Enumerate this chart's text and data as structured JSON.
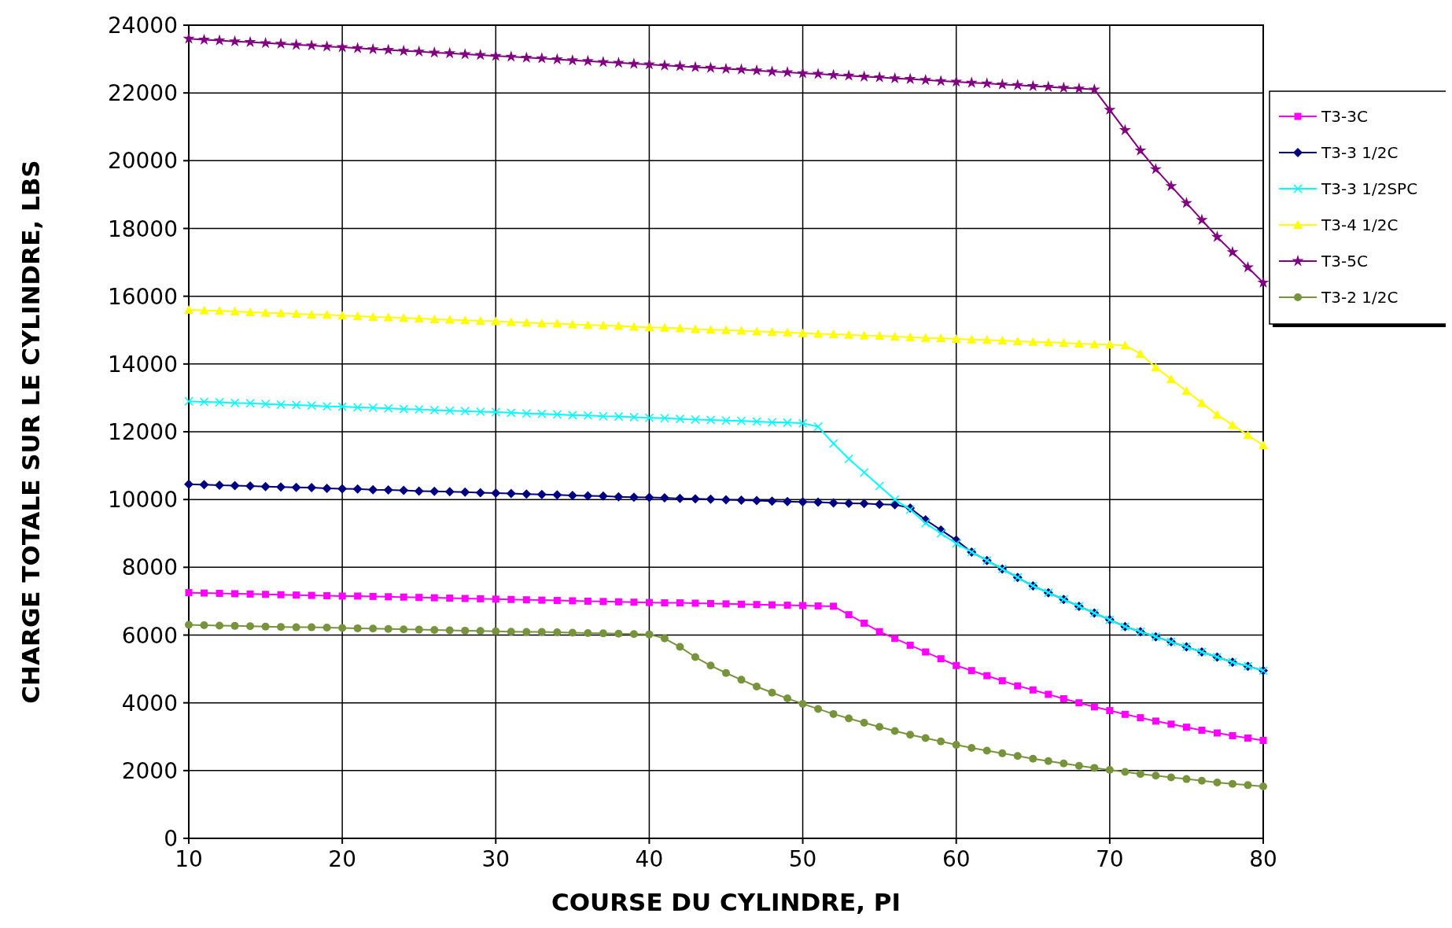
{
  "chart_data": {
    "type": "line",
    "xlabel": "COURSE DU CYLINDRE, PI",
    "ylabel": "CHARGE TOTALE SUR LE CYLINDRE, LBS",
    "x": [
      10,
      11,
      12,
      13,
      14,
      15,
      16,
      17,
      18,
      19,
      20,
      21,
      22,
      23,
      24,
      25,
      26,
      27,
      28,
      29,
      30,
      31,
      32,
      33,
      34,
      35,
      36,
      37,
      38,
      39,
      40,
      41,
      42,
      43,
      44,
      45,
      46,
      47,
      48,
      49,
      50,
      51,
      52,
      53,
      54,
      55,
      56,
      57,
      58,
      59,
      60,
      61,
      62,
      63,
      64,
      65,
      66,
      67,
      68,
      69,
      70,
      71,
      72,
      73,
      74,
      75,
      76,
      77,
      78,
      79,
      80
    ],
    "xlim": [
      10,
      80
    ],
    "xticks": [
      10,
      20,
      30,
      40,
      50,
      60,
      70,
      80
    ],
    "ylim": [
      0,
      24000
    ],
    "yticks": [
      0,
      2000,
      4000,
      6000,
      8000,
      10000,
      12000,
      14000,
      16000,
      18000,
      20000,
      22000,
      24000
    ],
    "grid": true,
    "legend": "right",
    "line_style": "solid",
    "series": [
      {
        "name": "T3-3C",
        "color": "#ff00ff",
        "marker": "square",
        "values": [
          7250,
          7240,
          7230,
          7220,
          7210,
          7200,
          7190,
          7180,
          7170,
          7160,
          7150,
          7150,
          7140,
          7130,
          7120,
          7110,
          7100,
          7090,
          7080,
          7070,
          7060,
          7050,
          7040,
          7030,
          7020,
          7010,
          7000,
          6990,
          6980,
          6970,
          6960,
          6950,
          6950,
          6940,
          6930,
          6920,
          6910,
          6900,
          6890,
          6880,
          6870,
          6860,
          6850,
          6600,
          6350,
          6100,
          5900,
          5700,
          5500,
          5300,
          5100,
          4950,
          4800,
          4650,
          4500,
          4380,
          4250,
          4120,
          4000,
          3880,
          3770,
          3660,
          3560,
          3460,
          3370,
          3280,
          3190,
          3110,
          3030,
          2960,
          2890
        ]
      },
      {
        "name": "T3-3 1/2C",
        "color": "#000080",
        "marker": "diamond",
        "values": [
          10450,
          10440,
          10420,
          10410,
          10400,
          10380,
          10370,
          10360,
          10350,
          10330,
          10320,
          10310,
          10290,
          10280,
          10270,
          10250,
          10240,
          10230,
          10220,
          10200,
          10190,
          10180,
          10160,
          10150,
          10140,
          10120,
          10110,
          10100,
          10080,
          10070,
          10060,
          10050,
          10030,
          10020,
          10010,
          9990,
          9980,
          9970,
          9950,
          9940,
          9930,
          9920,
          9900,
          9890,
          9880,
          9860,
          9850,
          9750,
          9400,
          9100,
          8800,
          8450,
          8200,
          7950,
          7700,
          7450,
          7250,
          7050,
          6850,
          6650,
          6450,
          6250,
          6100,
          5950,
          5800,
          5650,
          5500,
          5350,
          5200,
          5080,
          4950
        ]
      },
      {
        "name": "T3-3 1/2SPC",
        "color": "#00ffff",
        "marker": "cross",
        "values": [
          12900,
          12880,
          12870,
          12850,
          12840,
          12820,
          12800,
          12790,
          12770,
          12750,
          12740,
          12720,
          12710,
          12690,
          12670,
          12660,
          12640,
          12620,
          12610,
          12590,
          12580,
          12560,
          12540,
          12530,
          12510,
          12490,
          12480,
          12460,
          12450,
          12430,
          12410,
          12400,
          12380,
          12360,
          12350,
          12330,
          12320,
          12300,
          12280,
          12270,
          12250,
          12150,
          11650,
          11200,
          10800,
          10400,
          10000,
          9700,
          9300,
          9000,
          8700,
          8450,
          8200,
          7950,
          7700,
          7450,
          7250,
          7050,
          6850,
          6650,
          6450,
          6250,
          6100,
          5950,
          5800,
          5650,
          5500,
          5350,
          5200,
          5080,
          4950
        ]
      },
      {
        "name": "T3-4 1/2C",
        "color": "#ffff00",
        "marker": "triangle",
        "values": [
          15600,
          15580,
          15570,
          15550,
          15530,
          15510,
          15500,
          15480,
          15460,
          15450,
          15430,
          15410,
          15390,
          15380,
          15360,
          15340,
          15320,
          15310,
          15290,
          15270,
          15260,
          15240,
          15220,
          15200,
          15190,
          15170,
          15150,
          15140,
          15120,
          15100,
          15080,
          15070,
          15050,
          15030,
          15010,
          15000,
          14980,
          14960,
          14950,
          14930,
          14910,
          14890,
          14880,
          14860,
          14840,
          14830,
          14810,
          14790,
          14770,
          14760,
          14740,
          14720,
          14710,
          14690,
          14670,
          14650,
          14640,
          14620,
          14600,
          14580,
          14570,
          14550,
          14300,
          13900,
          13550,
          13200,
          12850,
          12500,
          12200,
          11900,
          11600
        ]
      },
      {
        "name": "T3-5C",
        "color": "#800080",
        "marker": "star",
        "values": [
          23600,
          23570,
          23550,
          23520,
          23500,
          23470,
          23450,
          23420,
          23400,
          23370,
          23350,
          23320,
          23290,
          23270,
          23240,
          23220,
          23190,
          23170,
          23140,
          23120,
          23090,
          23070,
          23040,
          23020,
          22990,
          22960,
          22940,
          22910,
          22890,
          22860,
          22840,
          22810,
          22790,
          22760,
          22740,
          22710,
          22690,
          22660,
          22630,
          22610,
          22580,
          22560,
          22530,
          22510,
          22480,
          22460,
          22430,
          22410,
          22380,
          22350,
          22330,
          22300,
          22280,
          22250,
          22230,
          22200,
          22180,
          22150,
          22130,
          22100,
          21500,
          20900,
          20300,
          19750,
          19250,
          18750,
          18250,
          17750,
          17300,
          16850,
          16400
        ]
      },
      {
        "name": "T3-2 1/2C",
        "color": "#77933c",
        "marker": "circle",
        "values": [
          6300,
          6290,
          6280,
          6270,
          6260,
          6250,
          6240,
          6230,
          6230,
          6220,
          6210,
          6200,
          6190,
          6180,
          6170,
          6160,
          6150,
          6140,
          6130,
          6120,
          6110,
          6100,
          6090,
          6090,
          6080,
          6070,
          6060,
          6050,
          6040,
          6030,
          6020,
          5900,
          5650,
          5350,
          5100,
          4880,
          4680,
          4480,
          4300,
          4130,
          3970,
          3820,
          3670,
          3540,
          3410,
          3290,
          3170,
          3060,
          2960,
          2860,
          2760,
          2670,
          2590,
          2510,
          2430,
          2350,
          2280,
          2210,
          2140,
          2080,
          2020,
          1960,
          1900,
          1850,
          1800,
          1750,
          1700,
          1650,
          1610,
          1570,
          1530
        ]
      }
    ]
  }
}
